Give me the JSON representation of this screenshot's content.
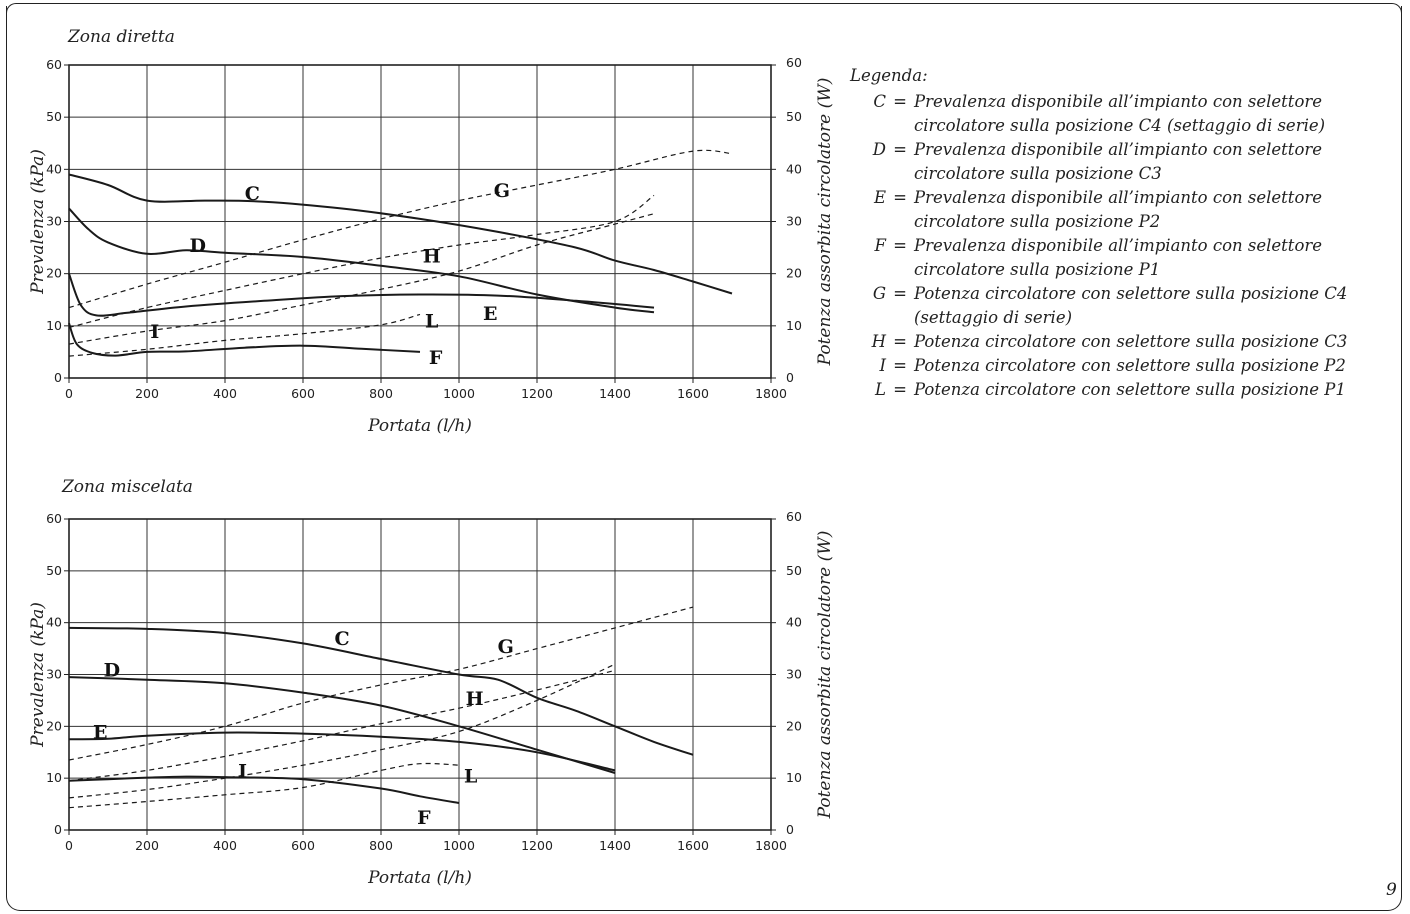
{
  "page_number": "9",
  "legend": {
    "title": "Legenda:",
    "items": [
      {
        "key": "C",
        "text": "Prevalenza disponibile all’impianto con selettore circolatore sulla posizione C4 (settaggio di serie)"
      },
      {
        "key": "D",
        "text": "Prevalenza disponibile all’impianto con selettore circolatore sulla posizione C3"
      },
      {
        "key": "E",
        "text": "Prevalenza disponibile all’impianto con selettore circolatore sulla posizione P2"
      },
      {
        "key": "F",
        "text": "Prevalenza disponibile all’impianto con selettore circolatore sulla posizione P1"
      },
      {
        "key": "G",
        "text": "Potenza circolatore con selettore sulla posizione C4 (settaggio di serie)"
      },
      {
        "key": "H",
        "text": "Potenza circolatore con selettore sulla posizione C3"
      },
      {
        "key": "I",
        "text": "Potenza circolatore con selettore sulla posizione P2"
      },
      {
        "key": "L",
        "text": "Potenza circolatore con selettore sulla posizione P1"
      }
    ]
  },
  "chart_data": [
    {
      "type": "line",
      "title": "Zona diretta",
      "xlabel": "Portata (l/h)",
      "ylabel": "Prevalenza (kPa)",
      "y2label": "Potenza assorbita circolatore (W)",
      "xlim": [
        0,
        1800
      ],
      "ylim": [
        0,
        60
      ],
      "y2lim": [
        0,
        60
      ],
      "xticks": [
        0,
        200,
        400,
        600,
        800,
        1000,
        1200,
        1400,
        1600,
        1800
      ],
      "yticks": [
        0,
        10,
        20,
        30,
        40,
        50,
        60
      ],
      "grid": true,
      "series": [
        {
          "name": "C",
          "style": "solid",
          "x": [
            0,
            100,
            200,
            350,
            500,
            700,
            900,
            1100,
            1300,
            1400,
            1500,
            1600,
            1700
          ],
          "y": [
            39,
            37,
            34,
            34,
            33.8,
            32.5,
            30.5,
            28,
            25,
            22.5,
            20.7,
            18.5,
            16.2
          ],
          "label_pos": [
            470,
            35.5
          ]
        },
        {
          "name": "D",
          "style": "solid",
          "x": [
            0,
            50,
            100,
            200,
            300,
            400,
            600,
            800,
            1000,
            1200,
            1400,
            1500
          ],
          "y": [
            32.5,
            28.5,
            26,
            23.8,
            24.5,
            24,
            23.2,
            21.5,
            19.5,
            16,
            13.5,
            12.6
          ],
          "label_pos": [
            330,
            25.5
          ]
        },
        {
          "name": "E",
          "style": "solid",
          "x": [
            0,
            30,
            70,
            150,
            300,
            500,
            700,
            900,
            1100,
            1300,
            1500
          ],
          "y": [
            20,
            14,
            12,
            12.5,
            13.7,
            14.8,
            15.7,
            16,
            15.8,
            14.8,
            13.5
          ],
          "label_pos": [
            1080,
            12.5
          ]
        },
        {
          "name": "F",
          "style": "solid",
          "x": [
            0,
            20,
            60,
            120,
            200,
            300,
            450,
            600,
            750,
            900
          ],
          "y": [
            10.5,
            6.5,
            4.8,
            4.3,
            5,
            5.1,
            5.8,
            6.2,
            5.6,
            5
          ],
          "label_pos": [
            940,
            4
          ]
        },
        {
          "name": "G",
          "style": "dashed",
          "x": [
            0,
            200,
            400,
            600,
            800,
            1000,
            1200,
            1400,
            1600,
            1700
          ],
          "y": [
            13.5,
            18,
            22.2,
            26.5,
            30.5,
            34,
            37,
            40,
            43.5,
            43
          ],
          "label_pos": [
            1110,
            36
          ]
        },
        {
          "name": "H",
          "style": "dashed",
          "x": [
            0,
            200,
            400,
            600,
            800,
            1000,
            1200,
            1400,
            1500
          ],
          "y": [
            9.7,
            13.5,
            16.8,
            20,
            23,
            25.5,
            27.5,
            30,
            35
          ],
          "label_pos": [
            930,
            23.5
          ]
        },
        {
          "name": "I",
          "style": "dashed",
          "x": [
            0,
            200,
            400,
            600,
            800,
            1000,
            1200,
            1400,
            1500
          ],
          "y": [
            6.5,
            9,
            11,
            14,
            17,
            20.5,
            25.5,
            29.5,
            31.5
          ],
          "label_pos": [
            220,
            9
          ]
        },
        {
          "name": "L",
          "style": "dashed",
          "x": [
            0,
            200,
            400,
            600,
            800,
            900
          ],
          "y": [
            4.2,
            5.5,
            7.2,
            8.5,
            10.2,
            12.2
          ],
          "label_pos": [
            930,
            11
          ]
        }
      ]
    },
    {
      "type": "line",
      "title": "Zona miscelata",
      "xlabel": "Portata (l/h)",
      "ylabel": "Prevalenza (kPa)",
      "y2label": "Potenza assorbita circolatore (W)",
      "xlim": [
        0,
        1800
      ],
      "ylim": [
        0,
        60
      ],
      "y2lim": [
        0,
        60
      ],
      "xticks": [
        0,
        200,
        400,
        600,
        800,
        1000,
        1200,
        1400,
        1600,
        1800
      ],
      "yticks": [
        0,
        10,
        20,
        30,
        40,
        50,
        60
      ],
      "grid": true,
      "series": [
        {
          "name": "C",
          "style": "solid",
          "x": [
            0,
            200,
            400,
            600,
            800,
            1000,
            1100,
            1200,
            1300,
            1400,
            1500,
            1600
          ],
          "y": [
            39,
            38.8,
            38,
            36,
            33,
            30,
            29,
            25.5,
            23,
            20,
            17,
            14.5
          ],
          "label_pos": [
            700,
            37
          ]
        },
        {
          "name": "D",
          "style": "solid",
          "x": [
            0,
            200,
            400,
            600,
            800,
            1000,
            1200,
            1400
          ],
          "y": [
            29.5,
            29,
            28.3,
            26.5,
            24,
            20,
            15.5,
            11
          ],
          "label_pos": [
            110,
            31
          ]
        },
        {
          "name": "E",
          "style": "solid",
          "x": [
            0,
            100,
            200,
            400,
            600,
            800,
            1000,
            1200,
            1400
          ],
          "y": [
            17.5,
            17.6,
            18.2,
            18.8,
            18.6,
            18,
            17,
            15,
            11.5
          ],
          "label_pos": [
            80,
            19
          ]
        },
        {
          "name": "F",
          "style": "solid",
          "x": [
            0,
            100,
            200,
            300,
            400,
            600,
            800,
            900,
            1000
          ],
          "y": [
            9.5,
            9.8,
            10.1,
            10.3,
            10.2,
            9.8,
            8,
            6.5,
            5.2
          ],
          "label_pos": [
            910,
            2.5
          ]
        },
        {
          "name": "G",
          "style": "dashed",
          "x": [
            0,
            200,
            400,
            600,
            800,
            1000,
            1200,
            1400,
            1600
          ],
          "y": [
            13.5,
            16.5,
            20,
            24.5,
            28,
            31,
            35,
            39,
            43
          ],
          "label_pos": [
            1120,
            35.5
          ]
        },
        {
          "name": "H",
          "style": "dashed",
          "x": [
            0,
            200,
            400,
            600,
            800,
            1000,
            1200,
            1400
          ],
          "y": [
            9.5,
            11.5,
            14.2,
            17.2,
            20.5,
            23.5,
            27,
            30.8
          ],
          "label_pos": [
            1040,
            25.5
          ]
        },
        {
          "name": "I",
          "style": "dashed",
          "x": [
            0,
            200,
            400,
            600,
            800,
            1000,
            1200,
            1400
          ],
          "y": [
            6.2,
            7.8,
            10,
            12.5,
            15.5,
            19,
            25,
            32
          ],
          "label_pos": [
            445,
            11.5
          ]
        },
        {
          "name": "L",
          "style": "dashed",
          "x": [
            0,
            200,
            400,
            600,
            800,
            900,
            1000
          ],
          "y": [
            4.3,
            5.5,
            6.8,
            8.2,
            11.5,
            12.8,
            12.5
          ],
          "label_pos": [
            1030,
            10.5
          ]
        }
      ]
    }
  ]
}
